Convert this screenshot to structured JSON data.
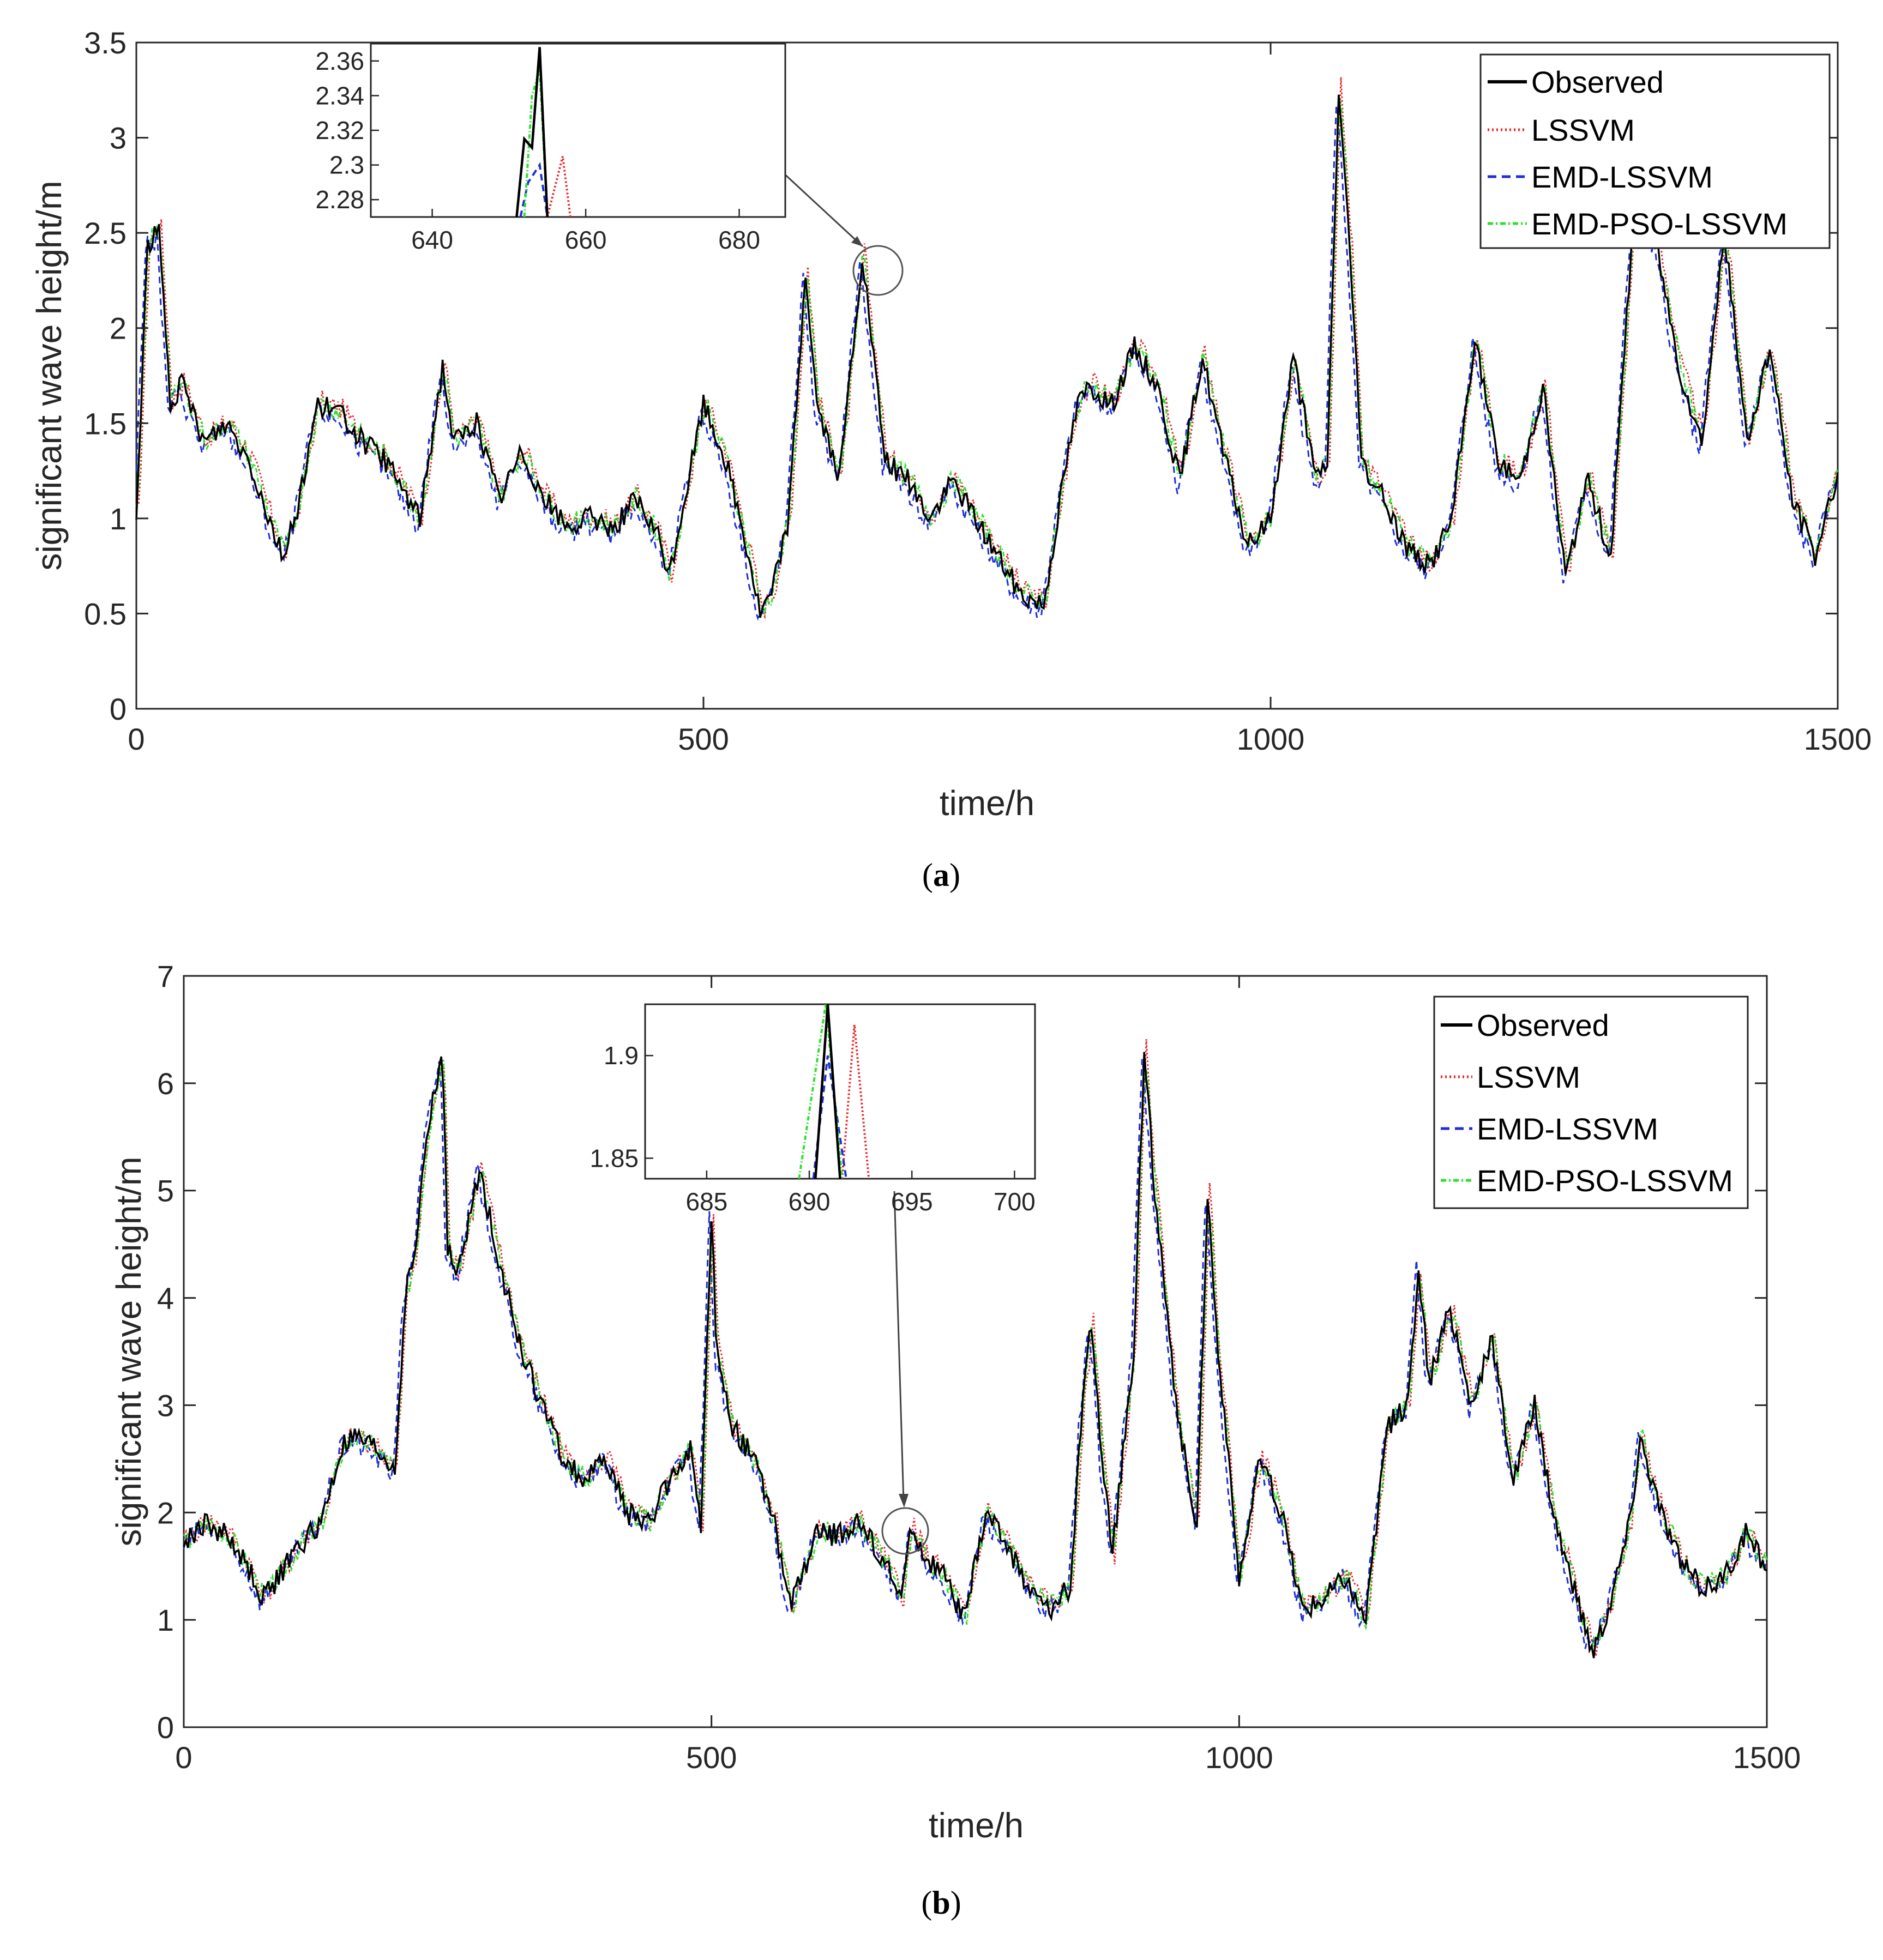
{
  "colors": {
    "observed": "#000000",
    "lssvm": "#e8262b",
    "emd_lssvm": "#1f2fd6",
    "emd_pso_lssvm": "#2ee02e"
  },
  "chart_data": [
    {
      "type": "line",
      "caption": "(a)",
      "caption_letter": "a",
      "xlabel": "time/h",
      "ylabel": "significant wave height/m",
      "xlim": [
        0,
        1500
      ],
      "ylim": [
        0,
        3.5
      ],
      "xticks": [
        "0",
        "500",
        "1000",
        "1500"
      ],
      "yticks": [
        "0",
        "0.5",
        "1",
        "1.5",
        "2",
        "2.5",
        "3",
        "3.5"
      ],
      "legend_position": "top-right",
      "series": [
        {
          "name": "Observed",
          "key": "observed"
        },
        {
          "name": "LSSVM",
          "key": "lssvm"
        },
        {
          "name": "EMD-LSSVM",
          "key": "emd_lssvm"
        },
        {
          "name": "EMD-PSO-LSSVM",
          "key": "emd_pso_lssvm"
        }
      ],
      "observed_envelope": {
        "x": [
          0,
          10,
          20,
          30,
          40,
          60,
          80,
          100,
          120,
          130,
          140,
          160,
          180,
          200,
          220,
          250,
          270,
          280,
          300,
          320,
          340,
          360,
          380,
          400,
          420,
          440,
          460,
          470,
          480,
          500,
          520,
          540,
          550,
          560,
          575,
          590,
          600,
          620,
          640,
          660,
          680,
          700,
          720,
          740,
          760,
          780,
          800,
          820,
          830,
          840,
          860,
          880,
          900,
          920,
          940,
          960,
          980,
          1000,
          1020,
          1040,
          1050,
          1060,
          1070,
          1080,
          1100,
          1120,
          1140,
          1160,
          1180,
          1200,
          1220,
          1240,
          1260,
          1280,
          1300,
          1320,
          1340,
          1360,
          1380,
          1400,
          1420,
          1440,
          1460,
          1480,
          1500
        ],
        "y": [
          1.0,
          2.45,
          2.5,
          1.6,
          1.7,
          1.4,
          1.5,
          1.3,
          0.95,
          0.8,
          1.0,
          1.6,
          1.55,
          1.4,
          1.3,
          1.0,
          1.8,
          1.4,
          1.5,
          1.1,
          1.35,
          1.1,
          0.95,
          1.0,
          0.95,
          1.1,
          0.9,
          0.7,
          1.0,
          1.6,
          1.3,
          0.8,
          0.5,
          0.6,
          1.0,
          2.3,
          1.6,
          1.2,
          2.38,
          1.3,
          1.2,
          1.0,
          1.2,
          1.0,
          0.8,
          0.6,
          0.55,
          1.3,
          1.6,
          1.7,
          1.6,
          1.9,
          1.7,
          1.2,
          1.85,
          1.3,
          0.85,
          1.0,
          1.85,
          1.2,
          1.3,
          3.25,
          2.4,
          1.3,
          1.1,
          0.85,
          0.75,
          1.0,
          1.95,
          1.3,
          1.2,
          1.7,
          0.7,
          1.2,
          0.8,
          2.6,
          2.45,
          1.8,
          1.4,
          2.5,
          1.4,
          1.9,
          1.1,
          0.8,
          1.25
        ]
      },
      "inset": {
        "xlim": [
          632,
          686
        ],
        "ylim": [
          2.27,
          2.37
        ],
        "xticks": [
          "640",
          "660",
          "680"
        ],
        "yticks": [
          "2.28",
          "2.3",
          "2.32",
          "2.34",
          "2.36"
        ],
        "observed": {
          "x": [
            651,
            652,
            653,
            654,
            655
          ],
          "y": [
            2.27,
            2.315,
            2.31,
            2.368,
            2.27
          ]
        },
        "lssvm": {
          "x": [
            655,
            657,
            658
          ],
          "y": [
            2.27,
            2.305,
            2.27
          ]
        },
        "emd_lssvm": {
          "x": [
            651.5,
            652.5,
            654,
            655
          ],
          "y": [
            2.27,
            2.29,
            2.3,
            2.27
          ]
        },
        "emd_pso_lssvm": {
          "x": [
            652,
            653,
            654,
            655
          ],
          "y": [
            2.27,
            2.34,
            2.355,
            2.27
          ]
        }
      }
    },
    {
      "type": "line",
      "caption": "(b)",
      "caption_letter": "b",
      "xlabel": "time/h",
      "ylabel": "significant wave height/m",
      "xlim": [
        0,
        1500
      ],
      "ylim": [
        0,
        7
      ],
      "xticks": [
        "0",
        "500",
        "1000",
        "1500"
      ],
      "yticks": [
        "0",
        "1",
        "2",
        "3",
        "4",
        "5",
        "6",
        "7"
      ],
      "legend_position": "top-right",
      "series": [
        {
          "name": "Observed",
          "key": "observed"
        },
        {
          "name": "LSSVM",
          "key": "lssvm"
        },
        {
          "name": "EMD-LSSVM",
          "key": "emd_lssvm"
        },
        {
          "name": "EMD-PSO-LSSVM",
          "key": "emd_pso_lssvm"
        }
      ],
      "observed_envelope": {
        "x": [
          0,
          20,
          40,
          60,
          75,
          90,
          110,
          130,
          150,
          160,
          180,
          200,
          210,
          220,
          230,
          245,
          250,
          260,
          280,
          300,
          320,
          340,
          360,
          380,
          400,
          420,
          440,
          460,
          480,
          490,
          500,
          505,
          520,
          540,
          560,
          575,
          600,
          620,
          640,
          660,
          680,
          690,
          700,
          720,
          740,
          760,
          780,
          800,
          820,
          840,
          850,
          860,
          870,
          880,
          900,
          910,
          920,
          940,
          960,
          970,
          980,
          1000,
          1020,
          1040,
          1060,
          1080,
          1100,
          1120,
          1140,
          1160,
          1170,
          1180,
          1200,
          1220,
          1240,
          1260,
          1280,
          1300,
          1320,
          1335,
          1350,
          1370,
          1380,
          1400,
          1420,
          1440,
          1460,
          1480,
          1500
        ],
        "y": [
          1.7,
          1.9,
          1.8,
          1.5,
          1.2,
          1.4,
          1.7,
          1.9,
          2.6,
          2.7,
          2.6,
          2.4,
          4.0,
          4.5,
          5.5,
          6.3,
          4.5,
          4.2,
          5.2,
          4.3,
          3.5,
          3.0,
          2.5,
          2.3,
          2.5,
          2.0,
          1.9,
          2.3,
          2.6,
          1.8,
          4.8,
          3.5,
          2.8,
          2.5,
          1.9,
          1.1,
          1.8,
          1.8,
          1.9,
          1.6,
          1.2,
          1.9,
          1.6,
          1.4,
          1.0,
          2.0,
          1.7,
          1.3,
          1.1,
          1.3,
          2.8,
          3.8,
          2.5,
          1.6,
          3.5,
          6.3,
          5.0,
          3.0,
          1.9,
          5.0,
          3.5,
          1.4,
          2.5,
          2.0,
          1.1,
          1.2,
          1.4,
          1.0,
          2.8,
          3.0,
          4.3,
          3.2,
          3.9,
          3.0,
          3.6,
          2.3,
          3.0,
          1.9,
          1.2,
          0.7,
          1.1,
          1.9,
          2.7,
          2.0,
          1.5,
          1.3,
          1.4,
          1.8,
          1.5
        ]
      },
      "inset": {
        "xlim": [
          682,
          701
        ],
        "ylim": [
          1.84,
          1.925
        ],
        "xticks": [
          "685",
          "690",
          "695",
          "700"
        ],
        "yticks": [
          "1.85",
          "1.9"
        ],
        "observed": {
          "x": [
            690.3,
            690.9,
            691.5
          ],
          "y": [
            1.84,
            1.925,
            1.84
          ]
        },
        "lssvm": {
          "x": [
            691.6,
            692.2,
            692.9
          ],
          "y": [
            1.84,
            1.915,
            1.84
          ]
        },
        "emd_lssvm": {
          "x": [
            690.2,
            690.9,
            691.8
          ],
          "y": [
            1.84,
            1.9,
            1.84
          ]
        },
        "emd_pso_lssvm": {
          "x": [
            689.5,
            690.8,
            691.6
          ],
          "y": [
            1.84,
            1.925,
            1.84
          ]
        }
      }
    }
  ]
}
